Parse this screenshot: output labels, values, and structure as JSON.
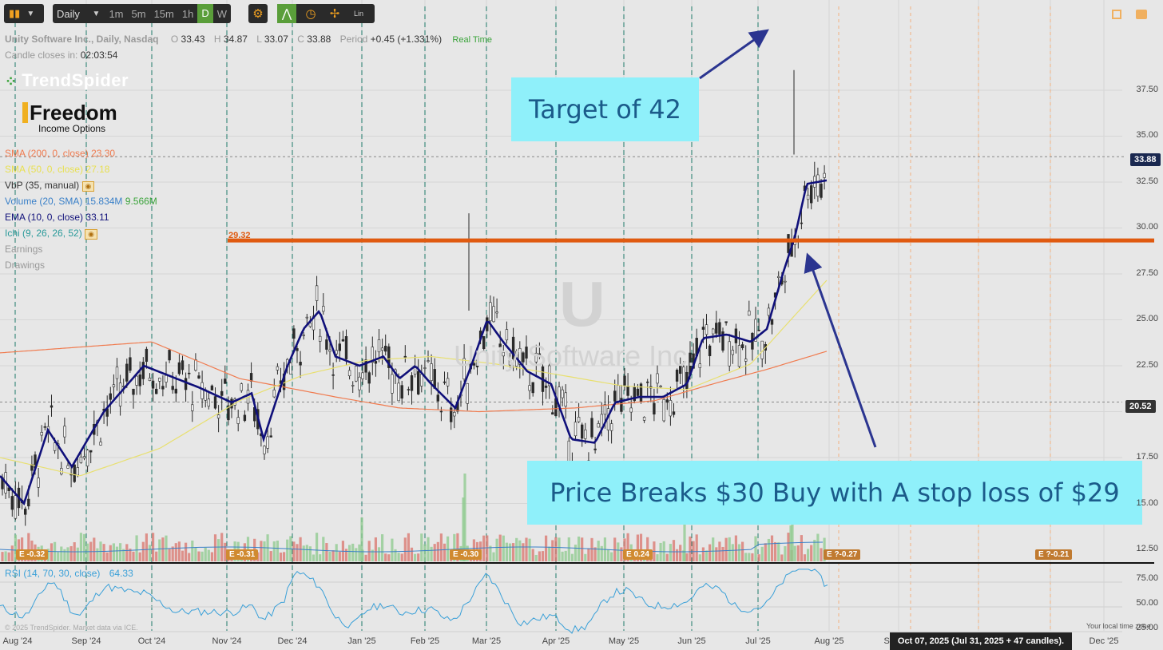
{
  "toolbar": {
    "interval": "Daily",
    "timeframes": [
      "1m",
      "5m",
      "15m",
      "1h",
      "D",
      "W"
    ],
    "scale": "Lin"
  },
  "header": {
    "symbol_title": "Unity Software Inc., Daily, Nasdaq",
    "o_label": "O",
    "o_value": "33.43",
    "h_label": "H",
    "h_value": "34.87",
    "l_label": "L",
    "l_value": "33.07",
    "c_label": "C",
    "c_value": "33.88",
    "period_label": "Period",
    "period_value": "+0.45 (+1.331%)",
    "realtime": "Real Time",
    "candle_close_label": "Candle closes in:",
    "candle_close_value": "02:03:54"
  },
  "brand": {
    "name": "TrendSpider",
    "logo_word": "Freedom",
    "logo_sub": "Income Options"
  },
  "indicators": {
    "sma200_label": "SMA (200, 0, close)",
    "sma200_value": "23.30",
    "sma50_label": "SMA (50, 0, close)",
    "sma50_value": "27.18",
    "vbp_label": "VbP (35, manual)",
    "volume_label": "Volume (20, SMA)",
    "volume_value1": "15.834M",
    "volume_value2": "9.566M",
    "ema_label": "EMA (10, 0, close)",
    "ema_value": "33.11",
    "ichi_label": "Ichi (9, 26, 26, 52)",
    "earnings_label": "Earnings",
    "drawings_label": "Drawings",
    "rsi_label": "RSI (14, 70, 30, close)",
    "rsi_value": "64.33"
  },
  "watermark": {
    "ticker": "U",
    "name": "Unity Software Inc."
  },
  "annotations": {
    "target": "Target of 42",
    "entry": "Price Breaks $30 Buy with A stop loss of $29",
    "hline_value": "29.32"
  },
  "price_tags": {
    "last": "33.88",
    "cursor": "20.52"
  },
  "y_ticks": [
    "37.50",
    "35.00",
    "32.50",
    "30.00",
    "27.50",
    "25.00",
    "22.50",
    "20.00",
    "17.50",
    "15.00",
    "12.50"
  ],
  "rsi_ticks": [
    "75.00",
    "50.00",
    "25.00"
  ],
  "x_ticks": [
    "Aug '24",
    "Sep '24",
    "Oct '24",
    "Nov '24",
    "Dec '24",
    "Jan '25",
    "Feb '25",
    "Mar '25",
    "Apr '25",
    "May '25",
    "Jun '25",
    "Jul '25",
    "Aug '25",
    "Sep '25",
    "Dec '25"
  ],
  "earnings_tags": [
    "E -0.32",
    "E -0.31",
    "E -0.30",
    "E 0.24",
    "E ?-0.27",
    "E ?-0.21"
  ],
  "footer": {
    "cursor_date": "Oct 07, 2025 (Jul 31, 2025 + 47 candles).",
    "local_time": "Your local time zone",
    "copyright": "© 2025 TrendSpider. Market data via ICE."
  },
  "colors": {
    "up": "#8cc98c",
    "down": "#d9736b",
    "candle": "#2a2a2a",
    "ema": "#10107a",
    "sma200": "#f07b4f",
    "sma50": "#f0ec7a",
    "hline": "#e05a10",
    "arrow": "#2b3590",
    "callout_bg": "#8ff0fa",
    "callout_text": "#1b5b8a"
  },
  "chart_data": {
    "type": "candlestick",
    "hline": 29.32,
    "ylim": [
      11.5,
      40
    ],
    "ema10_waypoints": [
      [
        0,
        16.5
      ],
      [
        30,
        15
      ],
      [
        60,
        19
      ],
      [
        90,
        17
      ],
      [
        130,
        20
      ],
      [
        180,
        22.5
      ],
      [
        250,
        21.3
      ],
      [
        290,
        20.5
      ],
      [
        315,
        21
      ],
      [
        330,
        18.5
      ],
      [
        360,
        22.5
      ],
      [
        380,
        24.5
      ],
      [
        400,
        25.5
      ],
      [
        420,
        23
      ],
      [
        450,
        22.5
      ],
      [
        480,
        23
      ],
      [
        500,
        21.8
      ],
      [
        520,
        22.5
      ],
      [
        540,
        21.5
      ],
      [
        570,
        20.2
      ],
      [
        590,
        22.5
      ],
      [
        610,
        25
      ],
      [
        630,
        23.8
      ],
      [
        660,
        22.2
      ],
      [
        690,
        21.5
      ],
      [
        715,
        18.5
      ],
      [
        745,
        18.3
      ],
      [
        770,
        20.5
      ],
      [
        800,
        20.8
      ],
      [
        830,
        20.8
      ],
      [
        860,
        21.5
      ],
      [
        880,
        24
      ],
      [
        910,
        24.2
      ],
      [
        940,
        23.8
      ],
      [
        960,
        24.5
      ],
      [
        980,
        27.5
      ],
      [
        995,
        29.5
      ],
      [
        1010,
        32.4
      ],
      [
        1036,
        32.6
      ]
    ],
    "sma200_waypoints": [
      [
        0,
        23.2
      ],
      [
        190,
        23.8
      ],
      [
        300,
        21.8
      ],
      [
        420,
        20.8
      ],
      [
        500,
        20.2
      ],
      [
        600,
        20.0
      ],
      [
        720,
        20.2
      ],
      [
        820,
        20.6
      ],
      [
        900,
        21.6
      ],
      [
        960,
        22.3
      ],
      [
        1036,
        23.3
      ]
    ],
    "sma50_waypoints": [
      [
        0,
        17.5
      ],
      [
        100,
        16.5
      ],
      [
        200,
        18
      ],
      [
        300,
        20.6
      ],
      [
        380,
        22
      ],
      [
        460,
        22.8
      ],
      [
        540,
        23
      ],
      [
        620,
        22.6
      ],
      [
        700,
        22
      ],
      [
        780,
        21.4
      ],
      [
        860,
        21.2
      ],
      [
        940,
        22.6
      ],
      [
        990,
        25
      ],
      [
        1036,
        27.2
      ]
    ]
  }
}
